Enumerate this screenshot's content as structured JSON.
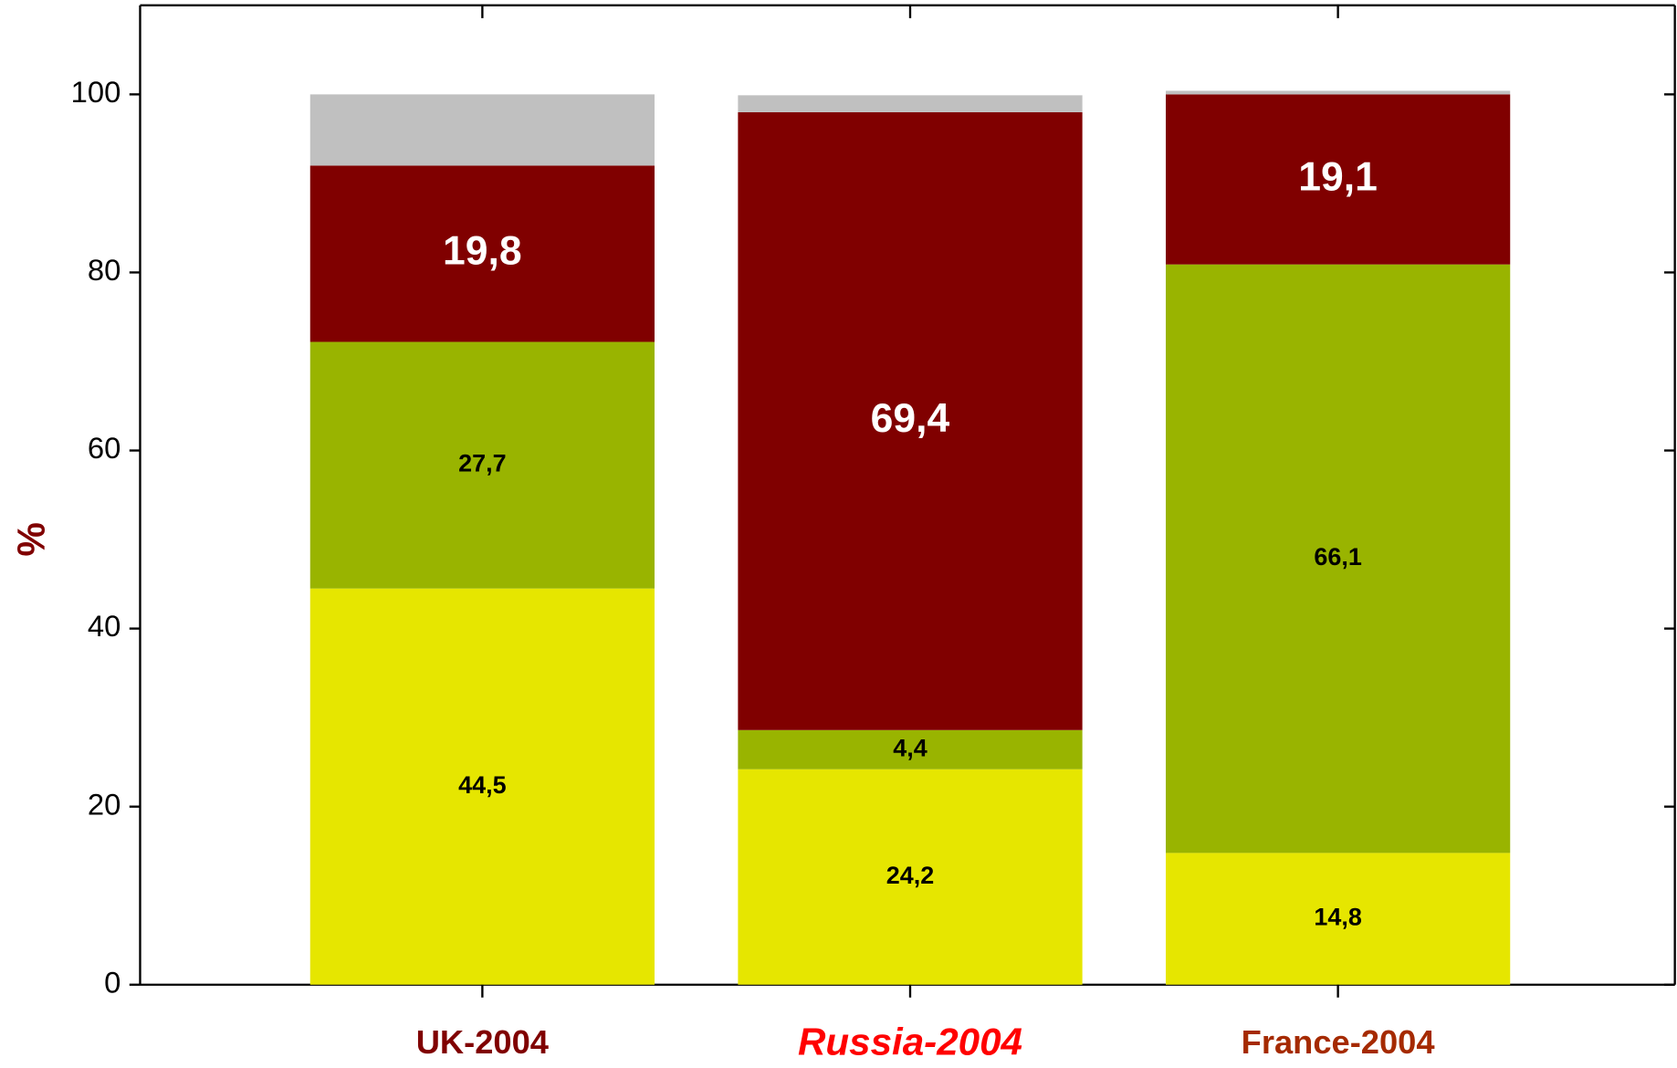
{
  "chart_data": {
    "type": "stacked_bar",
    "y_label": "%",
    "categories": [
      "UK-2004",
      "Russia-2004",
      "France-2004"
    ],
    "category_colors": [
      "#800000",
      "#ff0000",
      "#a52a00"
    ],
    "series": [
      {
        "color": "#e6e600",
        "label_color": "#000000",
        "values": [
          44.5,
          24.2,
          14.8
        ],
        "value_labels": [
          "44,5",
          "24,2",
          "14,8"
        ]
      },
      {
        "color": "#99b400",
        "label_color": "#000000",
        "values": [
          27.7,
          4.4,
          66.1
        ],
        "value_labels": [
          "27,7",
          "4,4",
          "66,1"
        ]
      },
      {
        "color": "#800000",
        "label_color": "#ffffff",
        "values": [
          19.8,
          69.4,
          19.1
        ],
        "value_labels": [
          "19,8",
          "69,4",
          "19,1"
        ]
      },
      {
        "color": "#c0c0c0",
        "values": [
          8.0,
          1.9,
          0.4
        ]
      }
    ],
    "ylim": [
      0,
      110
    ],
    "yticks": [
      0,
      20,
      40,
      60,
      80,
      100
    ]
  }
}
